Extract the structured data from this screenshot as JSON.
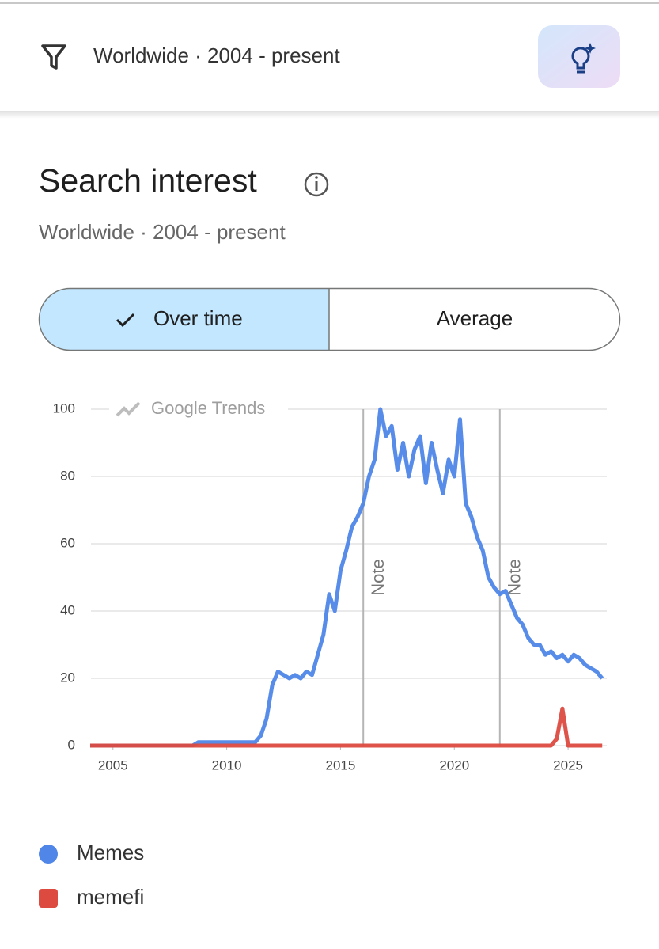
{
  "header": {
    "location": "Worldwide · 2004 - present"
  },
  "section": {
    "title": "Search interest",
    "subtitle": "Worldwide · 2004 - present"
  },
  "tabs": [
    "Over time",
    "Average"
  ],
  "chart_data": {
    "type": "line",
    "watermark": "Google Trends",
    "x": [
      2004,
      2004.25,
      2004.5,
      2004.75,
      2005,
      2005.25,
      2005.5,
      2005.75,
      2006,
      2006.25,
      2006.5,
      2006.75,
      2007,
      2007.25,
      2007.5,
      2007.75,
      2008,
      2008.25,
      2008.5,
      2008.75,
      2009,
      2009.25,
      2009.5,
      2009.75,
      2010,
      2010.25,
      2010.5,
      2010.75,
      2011,
      2011.25,
      2011.5,
      2011.75,
      2012,
      2012.25,
      2012.5,
      2012.75,
      2013,
      2013.25,
      2013.5,
      2013.75,
      2014,
      2014.25,
      2014.5,
      2014.75,
      2015,
      2015.25,
      2015.5,
      2015.75,
      2016,
      2016.25,
      2016.5,
      2016.75,
      2017,
      2017.25,
      2017.5,
      2017.75,
      2018,
      2018.25,
      2018.5,
      2018.75,
      2019,
      2019.25,
      2019.5,
      2019.75,
      2020,
      2020.25,
      2020.5,
      2020.75,
      2021,
      2021.25,
      2021.5,
      2021.75,
      2022,
      2022.25,
      2022.5,
      2022.75,
      2023,
      2023.25,
      2023.5,
      2023.75,
      2024,
      2024.25,
      2024.5,
      2024.75,
      2025,
      2025.25,
      2025.5,
      2025.75,
      2026,
      2026.25,
      2026.5
    ],
    "series": [
      {
        "name": "Memes",
        "color": "#4f86e8",
        "values": [
          0,
          0,
          0,
          0,
          0,
          0,
          0,
          0,
          0,
          0,
          0,
          0,
          0,
          0,
          0,
          0,
          0,
          0,
          0,
          1,
          1,
          1,
          1,
          1,
          1,
          1,
          1,
          1,
          1,
          1,
          3,
          8,
          18,
          22,
          21,
          20,
          21,
          20,
          22,
          21,
          27,
          33,
          45,
          40,
          52,
          58,
          65,
          68,
          72,
          80,
          85,
          100,
          92,
          95,
          82,
          90,
          80,
          88,
          92,
          78,
          90,
          82,
          75,
          85,
          80,
          97,
          72,
          68,
          62,
          58,
          50,
          47,
          45,
          46,
          42,
          38,
          36,
          32,
          30,
          30,
          27,
          28,
          26,
          27,
          25,
          27,
          26,
          24,
          23,
          22,
          20
        ]
      },
      {
        "name": "memefi",
        "color": "#dc4a40",
        "values": [
          0,
          0,
          0,
          0,
          0,
          0,
          0,
          0,
          0,
          0,
          0,
          0,
          0,
          0,
          0,
          0,
          0,
          0,
          0,
          0,
          0,
          0,
          0,
          0,
          0,
          0,
          0,
          0,
          0,
          0,
          0,
          0,
          0,
          0,
          0,
          0,
          0,
          0,
          0,
          0,
          0,
          0,
          0,
          0,
          0,
          0,
          0,
          0,
          0,
          0,
          0,
          0,
          0,
          0,
          0,
          0,
          0,
          0,
          0,
          0,
          0,
          0,
          0,
          0,
          0,
          0,
          0,
          0,
          0,
          0,
          0,
          0,
          0,
          0,
          0,
          0,
          0,
          0,
          0,
          0,
          0,
          0,
          2,
          11,
          0,
          0,
          0,
          0,
          0,
          0,
          0
        ]
      }
    ],
    "xlim": [
      2004,
      2026.7
    ],
    "xticks": [
      2005,
      2010,
      2015,
      2020,
      2025
    ],
    "ylim": [
      0,
      100
    ],
    "yticks": [
      0,
      20,
      40,
      60,
      80,
      100
    ],
    "grid": true,
    "annotations": [
      {
        "x": 2016,
        "label": "Note"
      },
      {
        "x": 2022,
        "label": "Note"
      }
    ],
    "legend": "bottom"
  }
}
